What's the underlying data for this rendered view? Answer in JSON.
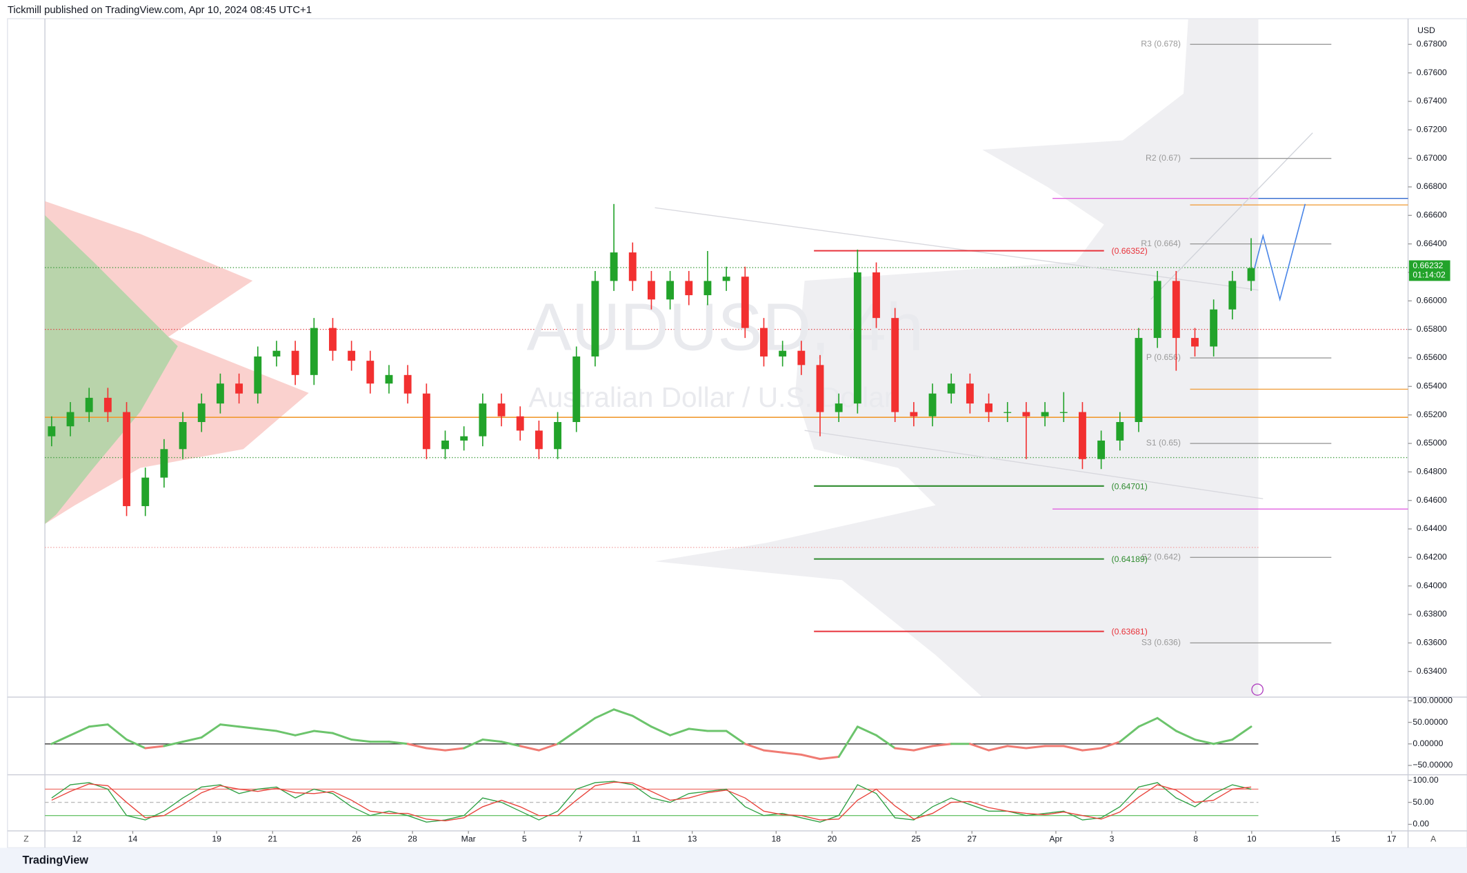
{
  "header": {
    "text": "Tickmill published on TradingView.com, Apr 10, 2024 08:45 UTC+1"
  },
  "footer": {
    "text": "TradingView"
  },
  "corner_labels": [
    "Z",
    "A"
  ],
  "chart_data": [
    {
      "type": "candlestick",
      "title": "AUDUSD, 4h",
      "subtitle": "Australian Dollar / U.S. Dollar",
      "currency": "USD",
      "up_color": "#22a32a",
      "down_color": "#f23030",
      "xlim": [
        -1.14,
        47.59
      ],
      "xticks": [
        {
          "value": 0,
          "label": "12"
        },
        {
          "value": 2,
          "label": "14"
        },
        {
          "value": 5,
          "label": "19"
        },
        {
          "value": 7,
          "label": "21"
        },
        {
          "value": 10,
          "label": "26"
        },
        {
          "value": 12,
          "label": "28"
        },
        {
          "value": 14,
          "label": "Mar"
        },
        {
          "value": 16,
          "label": "5"
        },
        {
          "value": 18,
          "label": "7"
        },
        {
          "value": 20,
          "label": "11"
        },
        {
          "value": 22,
          "label": "13"
        },
        {
          "value": 25,
          "label": "18"
        },
        {
          "value": 27,
          "label": "20"
        },
        {
          "value": 30,
          "label": "25"
        },
        {
          "value": 32,
          "label": "27"
        },
        {
          "value": 35,
          "label": "Apr"
        },
        {
          "value": 37,
          "label": "3"
        },
        {
          "value": 40,
          "label": "8"
        },
        {
          "value": 42,
          "label": "10"
        },
        {
          "value": 45,
          "label": "15"
        },
        {
          "value": 47,
          "label": "17"
        }
      ],
      "ylim": [
        0.6322,
        0.6798
      ],
      "yticks": [
        {
          "value": 0.634,
          "label": "0.63400"
        },
        {
          "value": 0.636,
          "label": "0.63600"
        },
        {
          "value": 0.638,
          "label": "0.63800"
        },
        {
          "value": 0.64,
          "label": "0.64000"
        },
        {
          "value": 0.642,
          "label": "0.64200"
        },
        {
          "value": 0.644,
          "label": "0.64400"
        },
        {
          "value": 0.646,
          "label": "0.64600"
        },
        {
          "value": 0.648,
          "label": "0.64800"
        },
        {
          "value": 0.65,
          "label": "0.65000"
        },
        {
          "value": 0.652,
          "label": "0.65200"
        },
        {
          "value": 0.654,
          "label": "0.65400"
        },
        {
          "value": 0.656,
          "label": "0.65600"
        },
        {
          "value": 0.658,
          "label": "0.65800"
        },
        {
          "value": 0.66,
          "label": "0.66000"
        },
        {
          "value": 0.662,
          "label": "0.66200"
        },
        {
          "value": 0.664,
          "label": "0.66400"
        },
        {
          "value": 0.666,
          "label": "0.66600"
        },
        {
          "value": 0.668,
          "label": "0.66800"
        },
        {
          "value": 0.67,
          "label": "0.67000"
        },
        {
          "value": 0.672,
          "label": "0.67200"
        },
        {
          "value": 0.674,
          "label": "0.67400"
        },
        {
          "value": 0.676,
          "label": "0.67600"
        },
        {
          "value": 0.678,
          "label": "0.67800"
        }
      ],
      "x": [
        -0.9,
        -0.23,
        0.44,
        1.11,
        1.78,
        2.45,
        3.12,
        3.79,
        4.46,
        5.13,
        5.8,
        6.47,
        7.14,
        7.81,
        8.48,
        9.15,
        9.82,
        10.49,
        11.16,
        11.83,
        12.5,
        13.17,
        13.84,
        14.51,
        15.18,
        15.85,
        16.52,
        17.19,
        17.86,
        18.53,
        19.2,
        19.87,
        20.54,
        21.21,
        21.88,
        22.55,
        23.22,
        23.89,
        24.56,
        25.23,
        25.9,
        26.57,
        27.24,
        27.91,
        28.58,
        29.25,
        29.92,
        30.59,
        31.26,
        31.93,
        32.6,
        33.27,
        33.94,
        34.61,
        35.28,
        35.95,
        36.62,
        37.29,
        37.96,
        38.63,
        39.3,
        39.97,
        40.64,
        41.31,
        41.98
      ],
      "open": [
        0.6505,
        0.6512,
        0.6522,
        0.6532,
        0.6522,
        0.6456,
        0.6476,
        0.6496,
        0.6515,
        0.6528,
        0.6542,
        0.6535,
        0.6561,
        0.6565,
        0.6548,
        0.6581,
        0.6565,
        0.6558,
        0.6542,
        0.6548,
        0.6535,
        0.6496,
        0.6502,
        0.6505,
        0.6528,
        0.6519,
        0.6509,
        0.6496,
        0.6515,
        0.6561,
        0.6614,
        0.6634,
        0.6614,
        0.6601,
        0.6614,
        0.6604,
        0.6614,
        0.6617,
        0.6581,
        0.6561,
        0.6565,
        0.6555,
        0.6522,
        0.6528,
        0.662,
        0.6588,
        0.6522,
        0.6519,
        0.6535,
        0.6542,
        0.6528,
        0.6522,
        0.6522,
        0.6519,
        0.6522,
        0.6522,
        0.6489,
        0.6502,
        0.6515,
        0.6574,
        0.6614,
        0.6574,
        0.6568,
        0.6594,
        0.6614
      ],
      "high": [
        0.6519,
        0.6529,
        0.6539,
        0.6539,
        0.6529,
        0.6483,
        0.6503,
        0.6522,
        0.6535,
        0.6549,
        0.6549,
        0.6568,
        0.6572,
        0.6572,
        0.6588,
        0.6588,
        0.6572,
        0.6565,
        0.6555,
        0.6555,
        0.6542,
        0.6509,
        0.6512,
        0.6535,
        0.6535,
        0.6526,
        0.6516,
        0.6522,
        0.6568,
        0.6621,
        0.6668,
        0.6641,
        0.6621,
        0.6621,
        0.6621,
        0.6635,
        0.6624,
        0.6624,
        0.6588,
        0.6572,
        0.6572,
        0.6562,
        0.6535,
        0.6636,
        0.6627,
        0.6595,
        0.6529,
        0.6542,
        0.6549,
        0.6549,
        0.6535,
        0.6529,
        0.6529,
        0.6529,
        0.6536,
        0.6529,
        0.6509,
        0.6522,
        0.6581,
        0.6621,
        0.6621,
        0.6581,
        0.6601,
        0.6621,
        0.6644
      ],
      "low": [
        0.6498,
        0.6505,
        0.6515,
        0.6515,
        0.6449,
        0.6449,
        0.6469,
        0.6489,
        0.6508,
        0.6521,
        0.6528,
        0.6528,
        0.6554,
        0.6541,
        0.6541,
        0.6558,
        0.6551,
        0.6535,
        0.6535,
        0.6528,
        0.6489,
        0.6489,
        0.6495,
        0.6498,
        0.6512,
        0.6502,
        0.6489,
        0.6489,
        0.6508,
        0.6554,
        0.6607,
        0.6607,
        0.6594,
        0.6594,
        0.6597,
        0.6597,
        0.6607,
        0.6574,
        0.6554,
        0.6554,
        0.6548,
        0.6505,
        0.6515,
        0.6521,
        0.6581,
        0.6515,
        0.6512,
        0.6512,
        0.6528,
        0.6521,
        0.6515,
        0.6515,
        0.6489,
        0.6512,
        0.6515,
        0.6482,
        0.6482,
        0.6495,
        0.6508,
        0.6567,
        0.6551,
        0.6561,
        0.6561,
        0.6587,
        0.6607
      ],
      "close": [
        0.6512,
        0.6522,
        0.6532,
        0.6522,
        0.6456,
        0.6476,
        0.6496,
        0.6515,
        0.6528,
        0.6542,
        0.6535,
        0.6561,
        0.6565,
        0.6548,
        0.6581,
        0.6565,
        0.6558,
        0.6542,
        0.6548,
        0.6535,
        0.6496,
        0.6502,
        0.6505,
        0.6528,
        0.6519,
        0.6509,
        0.6496,
        0.6515,
        0.6561,
        0.6614,
        0.6634,
        0.6614,
        0.6601,
        0.6614,
        0.6604,
        0.6614,
        0.6617,
        0.6581,
        0.6561,
        0.6565,
        0.6555,
        0.6522,
        0.6528,
        0.662,
        0.6588,
        0.6522,
        0.6519,
        0.6535,
        0.6542,
        0.6528,
        0.6522,
        0.6522,
        0.6519,
        0.6522,
        0.6522,
        0.6489,
        0.6502,
        0.6515,
        0.6574,
        0.6614,
        0.6574,
        0.6568,
        0.6594,
        0.6614,
        0.6623
      ],
      "last_price": 0.66232,
      "countdown": "01:14:02",
      "last_color": "#22a32a",
      "pivots": [
        {
          "label": "R3 (0.678)",
          "value": 0.678
        },
        {
          "label": "R2 (0.67)",
          "value": 0.67
        },
        {
          "label": "R1 (0.664)",
          "value": 0.664
        },
        {
          "label": "P (0.656)",
          "value": 0.656
        },
        {
          "label": "S1 (0.65)",
          "value": 0.65
        },
        {
          "label": "S2 (0.642)",
          "value": 0.642
        },
        {
          "label": "S3 (0.636)",
          "value": 0.636
        }
      ],
      "levels": [
        {
          "label": "(0.66352)",
          "value": 0.66352,
          "color": "#e8323a"
        },
        {
          "label": "(0.64701)",
          "value": 0.64701,
          "color": "#2e8b2e"
        },
        {
          "label": "(0.64189)",
          "value": 0.64189,
          "color": "#2e8b2e"
        },
        {
          "label": "(0.63681)",
          "value": 0.63681,
          "color": "#e8323a"
        }
      ]
    },
    {
      "type": "line",
      "ylim": [
        -71.7,
        108.7
      ],
      "yticks": [
        {
          "value": 100,
          "label": "100.00000"
        },
        {
          "value": 50,
          "label": "50.00000"
        },
        {
          "value": 0,
          "label": "0.00000"
        },
        {
          "value": -50,
          "label": "−50.00000"
        }
      ],
      "pos_color": "#6cc46c",
      "neg_color": "#f07b73",
      "values": [
        0,
        20,
        40,
        45,
        10,
        -10,
        -5,
        5,
        15,
        45,
        40,
        35,
        30,
        20,
        30,
        25,
        10,
        5,
        5,
        0,
        -10,
        -15,
        -10,
        10,
        5,
        -5,
        -15,
        0,
        30,
        60,
        80,
        65,
        40,
        20,
        35,
        30,
        30,
        0,
        -15,
        -20,
        -25,
        -35,
        -30,
        40,
        20,
        -10,
        -15,
        -5,
        0,
        0,
        -15,
        -5,
        -10,
        -5,
        -5,
        -15,
        -10,
        5,
        40,
        60,
        30,
        10,
        0,
        10,
        40
      ]
    },
    {
      "type": "line",
      "ylim": [
        -14.9,
        112.8
      ],
      "yticks": [
        {
          "value": 100,
          "label": "100.00"
        },
        {
          "value": 50,
          "label": "50.00"
        },
        {
          "value": 0,
          "label": "0.00"
        }
      ],
      "bands": [
        {
          "value": 80,
          "color": "#f07b73"
        },
        {
          "value": 20,
          "color": "#6cc46c"
        }
      ],
      "series": [
        {
          "color": "#2ea043",
          "values": [
            60,
            90,
            95,
            80,
            20,
            10,
            30,
            60,
            85,
            90,
            70,
            80,
            85,
            60,
            80,
            70,
            40,
            20,
            30,
            20,
            5,
            10,
            20,
            60,
            50,
            30,
            10,
            30,
            80,
            95,
            98,
            90,
            60,
            50,
            70,
            75,
            80,
            40,
            20,
            25,
            15,
            5,
            20,
            90,
            70,
            15,
            10,
            40,
            60,
            45,
            30,
            30,
            20,
            25,
            30,
            10,
            15,
            40,
            85,
            95,
            60,
            40,
            70,
            90,
            80
          ]
        },
        {
          "color": "#e8423a",
          "values": [
            55,
            75,
            92,
            88,
            50,
            15,
            20,
            45,
            72,
            88,
            80,
            75,
            82,
            72,
            70,
            75,
            55,
            30,
            25,
            25,
            12,
            8,
            15,
            40,
            55,
            40,
            20,
            20,
            55,
            88,
            96,
            94,
            75,
            55,
            60,
            72,
            78,
            60,
            30,
            22,
            20,
            10,
            12,
            55,
            80,
            42,
            12,
            25,
            50,
            52,
            38,
            30,
            25,
            22,
            28,
            20,
            12,
            28,
            62,
            90,
            78,
            50,
            55,
            80,
            85
          ]
        }
      ]
    }
  ]
}
